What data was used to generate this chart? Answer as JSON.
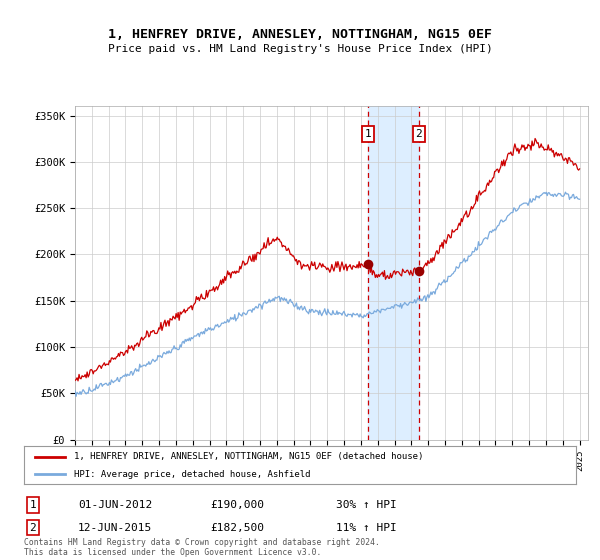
{
  "title": "1, HENFREY DRIVE, ANNESLEY, NOTTINGHAM, NG15 0EF",
  "subtitle": "Price paid vs. HM Land Registry's House Price Index (HPI)",
  "ylabel_ticks": [
    "£0",
    "£50K",
    "£100K",
    "£150K",
    "£200K",
    "£250K",
    "£300K",
    "£350K"
  ],
  "ytick_values": [
    0,
    50000,
    100000,
    150000,
    200000,
    250000,
    300000,
    350000
  ],
  "ylim": [
    0,
    360000
  ],
  "xlim_start": 1995.0,
  "xlim_end": 2025.5,
  "transaction1": {
    "date": 2012.42,
    "price": 190000,
    "label": "1",
    "text": "01-JUN-2012",
    "price_text": "£190,000",
    "hpi_text": "30% ↑ HPI"
  },
  "transaction2": {
    "date": 2015.44,
    "price": 182500,
    "label": "2",
    "text": "12-JUN-2015",
    "price_text": "£182,500",
    "hpi_text": "11% ↑ HPI"
  },
  "legend_line1": "1, HENFREY DRIVE, ANNESLEY, NOTTINGHAM, NG15 0EF (detached house)",
  "legend_line2": "HPI: Average price, detached house, Ashfield",
  "footer": "Contains HM Land Registry data © Crown copyright and database right 2024.\nThis data is licensed under the Open Government Licence v3.0.",
  "line_color_red": "#cc0000",
  "line_color_blue": "#7aaadd",
  "background_color": "#ffffff",
  "grid_color": "#cccccc",
  "shade_color": "#ddeeff"
}
